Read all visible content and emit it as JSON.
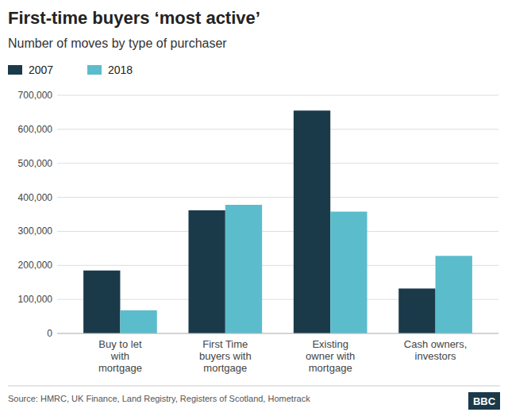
{
  "chart_data": {
    "type": "bar",
    "title": "First-time buyers ‘most active’",
    "subtitle": "Number of moves by type of purchaser",
    "categories": [
      "Buy to let\nwith\nmortgage",
      "First Time\nbuyers with\nmortgage",
      "Existing\nowner with\nmortgage",
      "Cash owners,\ninvestors"
    ],
    "series": [
      {
        "name": "2007",
        "color": "#1a3a4a",
        "values": [
          185000,
          362000,
          655000,
          132000
        ]
      },
      {
        "name": "2018",
        "color": "#5bbccc",
        "values": [
          68000,
          378000,
          358000,
          228000
        ]
      }
    ],
    "ylim": [
      0,
      700000
    ],
    "yticks": [
      0,
      {
        "value": 100000,
        "label": "100,000"
      },
      {
        "value": 200000,
        "label": "200,000"
      },
      {
        "value": 300000,
        "label": "300,000"
      },
      {
        "value": 400000,
        "label": "400,000"
      },
      {
        "value": 500000,
        "label": "500,000"
      },
      {
        "value": 600000,
        "label": "600,000"
      },
      {
        "value": 700000,
        "label": "700,000"
      }
    ],
    "grid": true,
    "legend": "top-left",
    "source": "Source: HMRC, UK Finance, Land Registry, Registers of Scotland, Hometrack",
    "annotations": [
      "BBC"
    ]
  }
}
